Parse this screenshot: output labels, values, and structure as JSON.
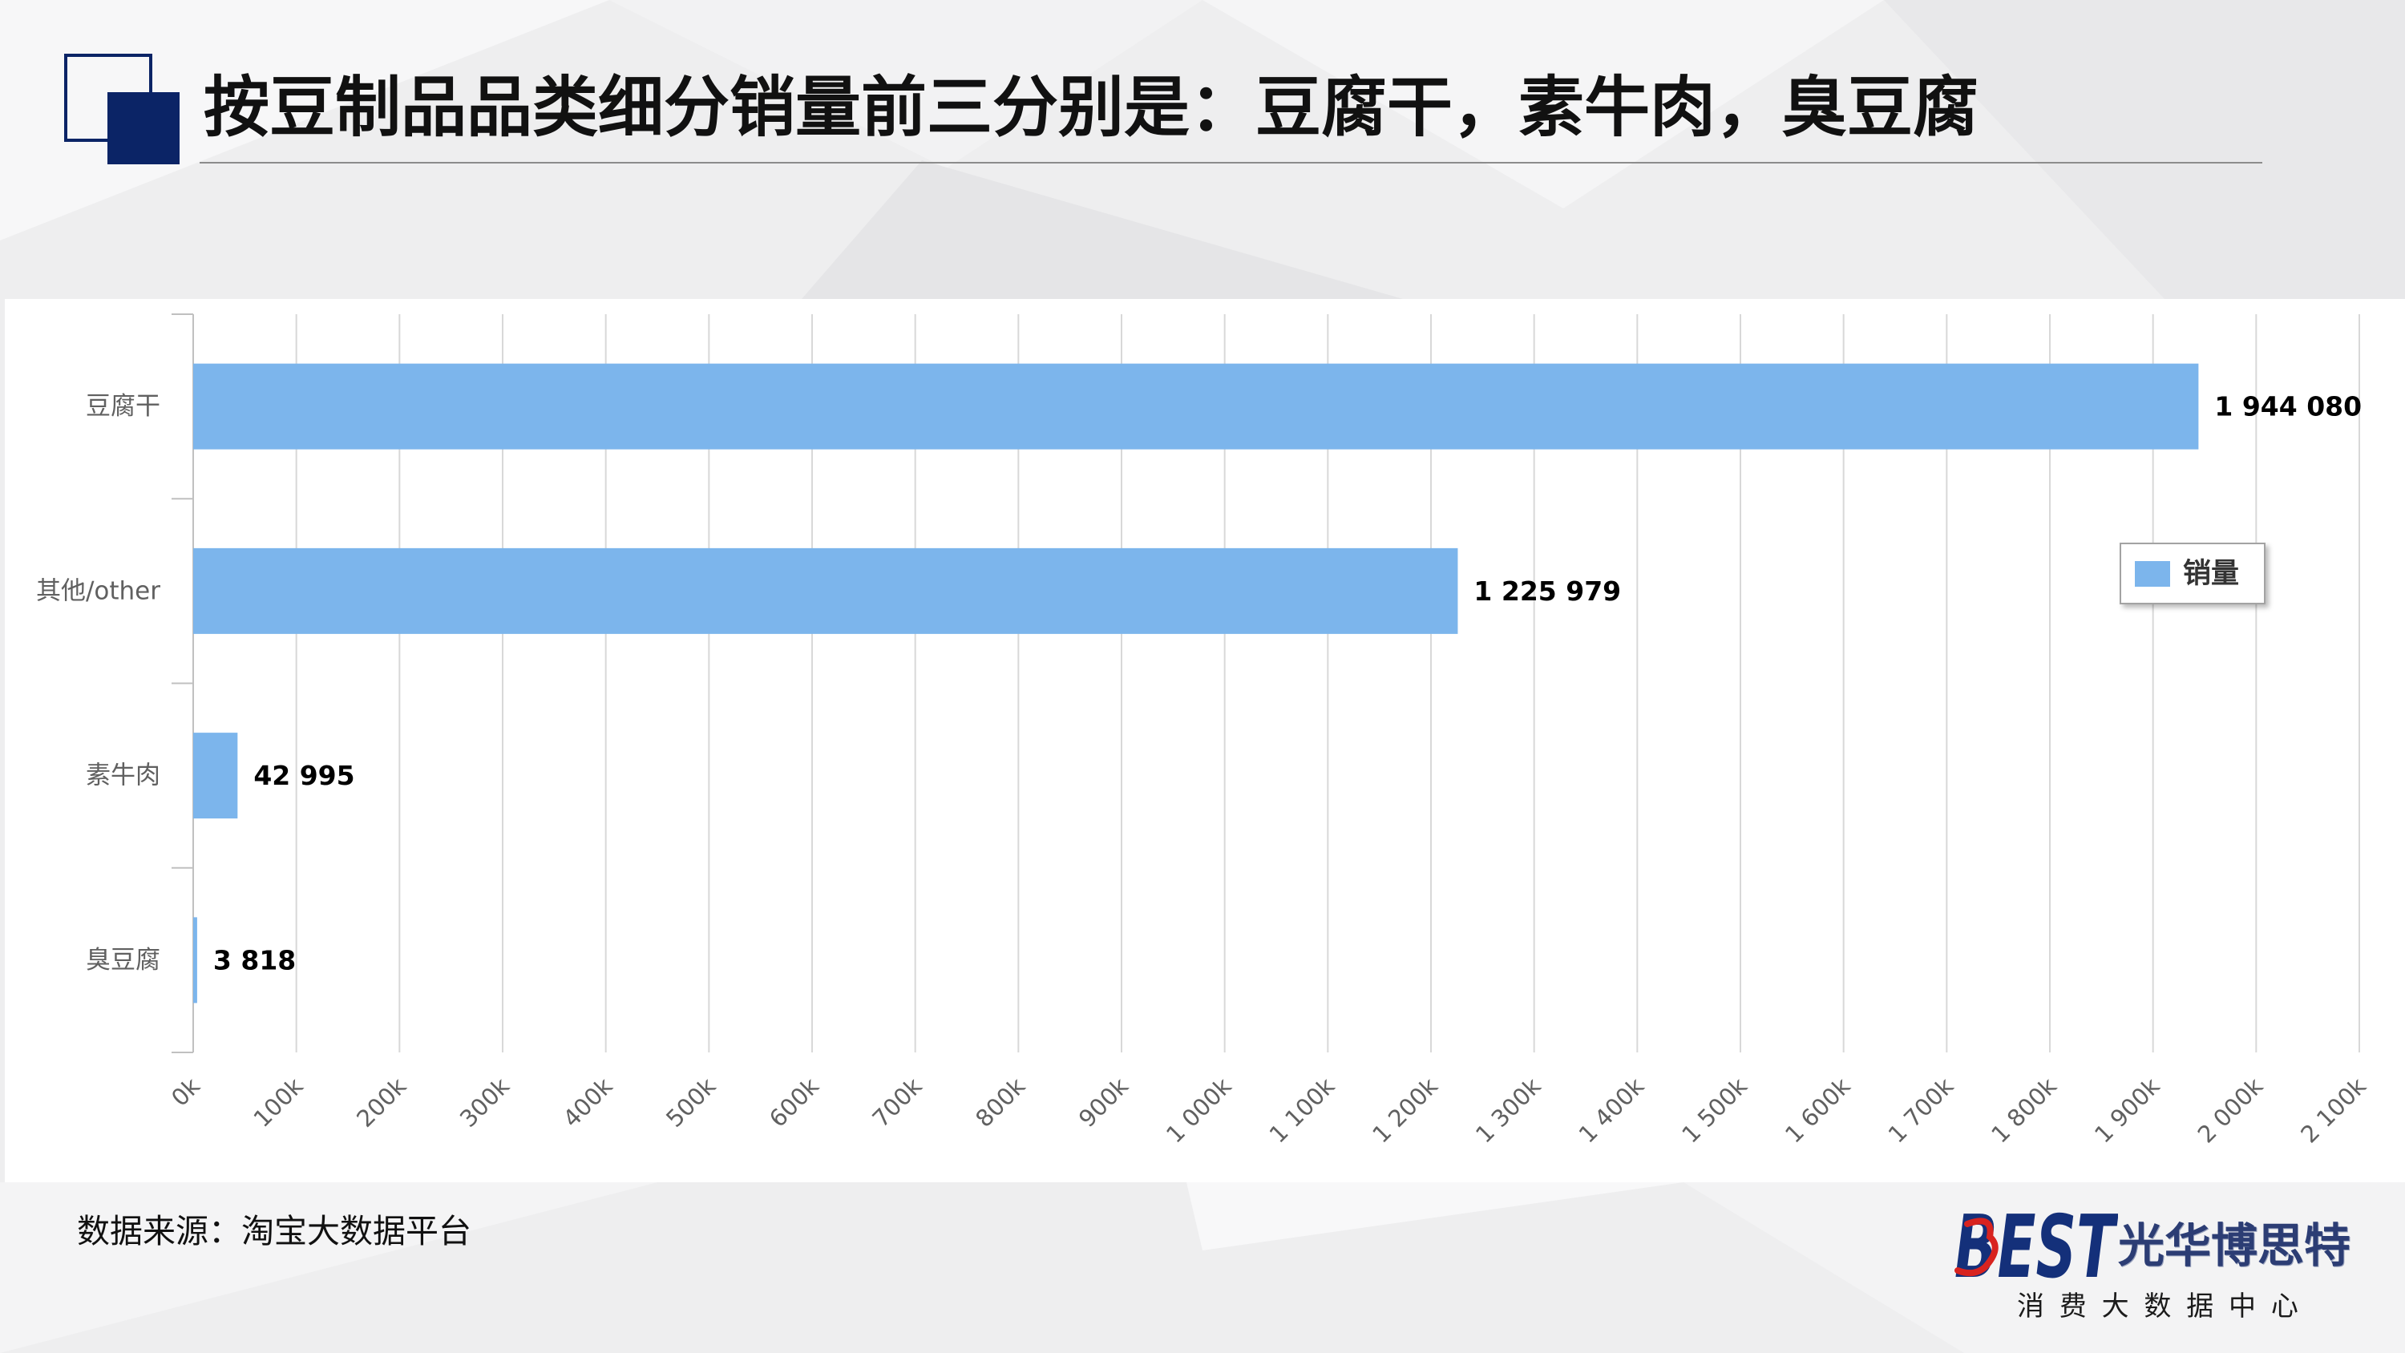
{
  "slide": {
    "title": "按豆制品品类细分销量前三分别是：豆腐干，素牛肉，臭豆腐",
    "source": "数据来源：淘宝大数据平台"
  },
  "brand": {
    "logo_text": "BEST",
    "name": "光华博思特",
    "tagline": "消 费 大 数 据 中 心"
  },
  "colors": {
    "accent": "#0b2466",
    "brand_navy": "#14307a",
    "brand_red": "#d8231f",
    "bar": "#7cb5ec",
    "grid": "#d8d8d8",
    "axis": "#c0c0c0"
  },
  "chart_data": {
    "type": "bar",
    "orientation": "horizontal",
    "categories": [
      "豆腐干",
      "其他/other",
      "素牛肉",
      "臭豆腐"
    ],
    "series": [
      {
        "name": "销量",
        "values": [
          1944080,
          1225979,
          42995,
          3818
        ]
      }
    ],
    "data_labels": [
      "1 944 080",
      "1 225 979",
      "42 995",
      "3 818"
    ],
    "xlim": [
      0,
      2100000
    ],
    "x_tick_interval": 100000,
    "x_tick_labels": [
      "0k",
      "100k",
      "200k",
      "300k",
      "400k",
      "500k",
      "600k",
      "700k",
      "800k",
      "900k",
      "1 000k",
      "1 100k",
      "1 200k",
      "1 300k",
      "1 400k",
      "1 500k",
      "1 600k",
      "1 700k",
      "1 800k",
      "1 900k",
      "2 000k",
      "2 100k"
    ],
    "grid": true,
    "legend": {
      "position": "right"
    }
  }
}
